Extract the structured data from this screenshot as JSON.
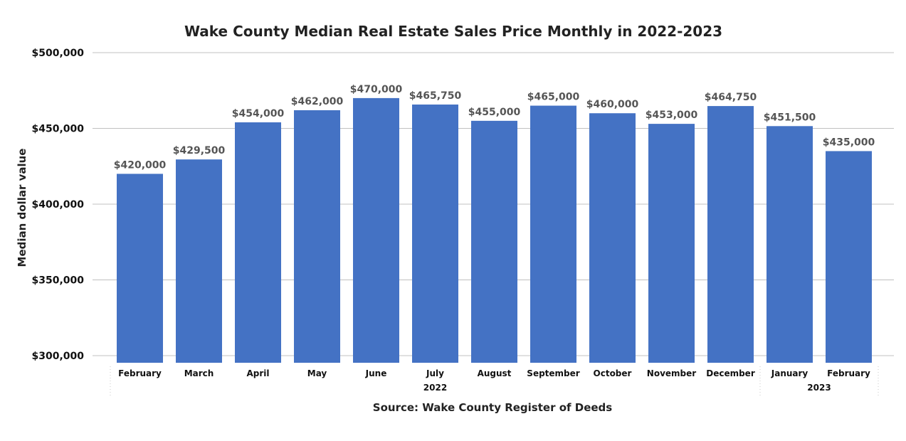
{
  "chart_data": {
    "type": "bar",
    "title": "Wake County Median Real Estate Sales Price Monthly in 2022-2023",
    "ylabel": "Median dollar value",
    "xlabel": "Source: Wake County Register of Deeds",
    "ylim": [
      300000,
      500000
    ],
    "yticks": [
      300000,
      350000,
      400000,
      450000,
      500000
    ],
    "ytick_labels": [
      "$300,000",
      "$350,000",
      "$400,000",
      "$450,000",
      "$500,000"
    ],
    "grid": true,
    "bar_color": "#4472C4",
    "categories": [
      "February",
      "March",
      "April",
      "May",
      "June",
      "July",
      "August",
      "September",
      "October",
      "November",
      "December",
      "January",
      "February"
    ],
    "groups": [
      {
        "label": "2022",
        "start": 0,
        "end": 10
      },
      {
        "label": "2023",
        "start": 11,
        "end": 12
      }
    ],
    "values": [
      420000,
      429500,
      454000,
      462000,
      470000,
      465750,
      455000,
      465000,
      460000,
      453000,
      464750,
      451500,
      435000
    ],
    "data_labels": [
      "$420,000",
      "$429,500",
      "$454,000",
      "$462,000",
      "$470,000",
      "$465,750",
      "$455,000",
      "$465,000",
      "$460,000",
      "$453,000",
      "$464,750",
      "$451,500",
      "$435,000"
    ]
  }
}
